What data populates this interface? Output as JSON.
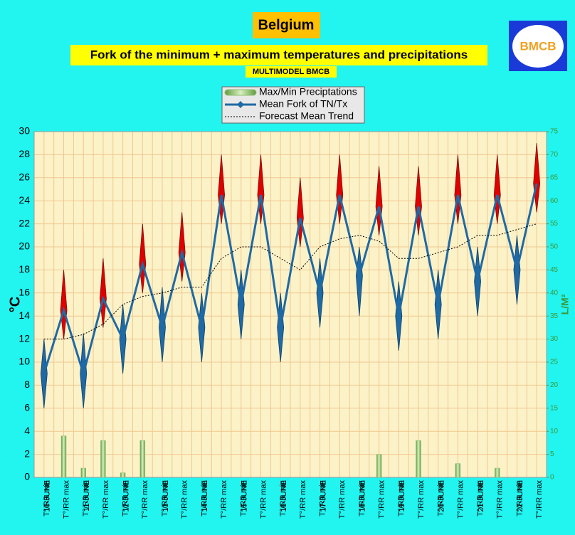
{
  "chart_data": {
    "type": "line",
    "title": "Belgium",
    "subtitle": "Fork of the minimum + maximum temperatures and precipitations",
    "note": "MULTIMODEL BMCB",
    "logo": "BMCB",
    "ylabel": "°C",
    "y2label": "L/M²",
    "categories": [
      "T°/RR min",
      "T°/RR max",
      "T°/RR min",
      "T°/RR max",
      "T°/RR min",
      "T°/RR max",
      "T°/RR min",
      "T°/RR max",
      "T°/RR min",
      "T°/RR max",
      "T°/RR min",
      "T°/RR max",
      "T°/RR min",
      "T°/RR max",
      "T°/RR min",
      "T°/RR max",
      "T°/RR min",
      "T°/RR max",
      "T°/RR min",
      "T°/RR max",
      "T°/RR min",
      "T°/RR max",
      "T°/RR min",
      "T°/RR max",
      "T°/RR min",
      "T°/RR max"
    ],
    "dates": [
      "10-JUNE",
      "11-JUNE",
      "12-JUNE",
      "13-JUNE",
      "14-JUNE",
      "15-JUNE",
      "16-JUNE",
      "17-JUNE",
      "18-JUNE",
      "19-JUNE",
      "20-JUNE",
      "21-JUNE",
      "22-JUNE"
    ],
    "series": [
      {
        "name": "Max/Min Preciptations",
        "type": "bar",
        "axis": "y2",
        "color": "#8fc170",
        "values": [
          0,
          9,
          2,
          8,
          1,
          8,
          0,
          0,
          0,
          0,
          0,
          0,
          0,
          0,
          0,
          0,
          0,
          5,
          0,
          8,
          0,
          3,
          0,
          2,
          0,
          0
        ]
      },
      {
        "name": "Mean Fork of TN/Tx",
        "color": "#1f6aa5",
        "values": [
          9,
          14.5,
          9,
          15.5,
          12,
          18.5,
          13,
          19.5,
          13,
          24.5,
          15,
          24.5,
          13,
          22.5,
          16,
          24.5,
          17.5,
          23.5,
          14,
          23.5,
          15,
          24.5,
          17,
          24.5,
          18,
          25.5
        ],
        "low": [
          6,
          12,
          6,
          13,
          9,
          16,
          10,
          17,
          10,
          22,
          12,
          22,
          10,
          20,
          13,
          22,
          14,
          21,
          11,
          21,
          12,
          22,
          14,
          22,
          15,
          23
        ],
        "high": [
          12,
          18,
          12.5,
          19,
          15,
          22,
          16.5,
          23,
          16,
          28,
          18,
          28,
          16,
          26,
          19,
          28,
          20,
          27,
          17,
          27,
          18,
          28,
          20,
          28,
          21,
          29
        ]
      },
      {
        "name": "Forecast Mean Trend",
        "color": "#000000",
        "values": [
          12,
          12,
          12.4,
          13.3,
          15,
          15.7,
          16,
          16.5,
          16.5,
          19,
          20,
          20,
          19,
          18,
          20,
          20.7,
          21,
          20.5,
          19,
          19,
          19.5,
          20,
          21,
          21,
          21.5,
          22
        ]
      }
    ],
    "fork_colors": [
      "#1f6aa5",
      "#e00000"
    ],
    "ylim": [
      0,
      30
    ],
    "yticks": [
      0,
      2,
      4,
      6,
      8,
      10,
      12,
      14,
      16,
      18,
      20,
      22,
      24,
      26,
      28,
      30
    ],
    "y2lim": [
      0,
      75
    ],
    "y2ticks": [
      0,
      5,
      10,
      15,
      20,
      25,
      30,
      35,
      40,
      45,
      50,
      55,
      60,
      65,
      70,
      75
    ],
    "grid": true
  }
}
